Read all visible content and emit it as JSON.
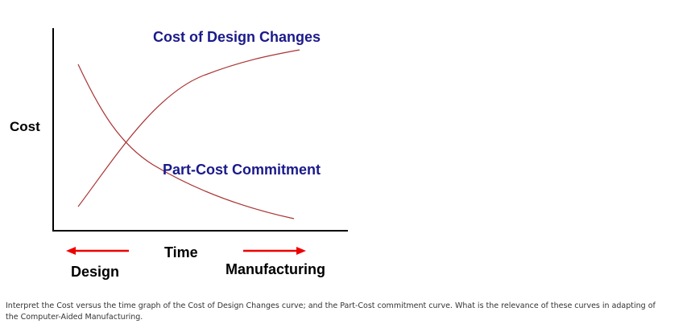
{
  "diagram": {
    "y_axis_label": "Cost",
    "x_axis_label": "Time",
    "curves": [
      {
        "label": "Cost of Design Changes"
      },
      {
        "label": "Part-Cost Commitment"
      }
    ],
    "phases": [
      "Design",
      "Manufacturing"
    ]
  },
  "caption": {
    "lines": [
      "Interpret the Cost versus  the time graph of the Cost of Design Changes curve; and the Part-Cost commitment curve.  What is the relevance of these curves in adapting of",
      "the Computer-Aided Manufacturing."
    ]
  }
}
